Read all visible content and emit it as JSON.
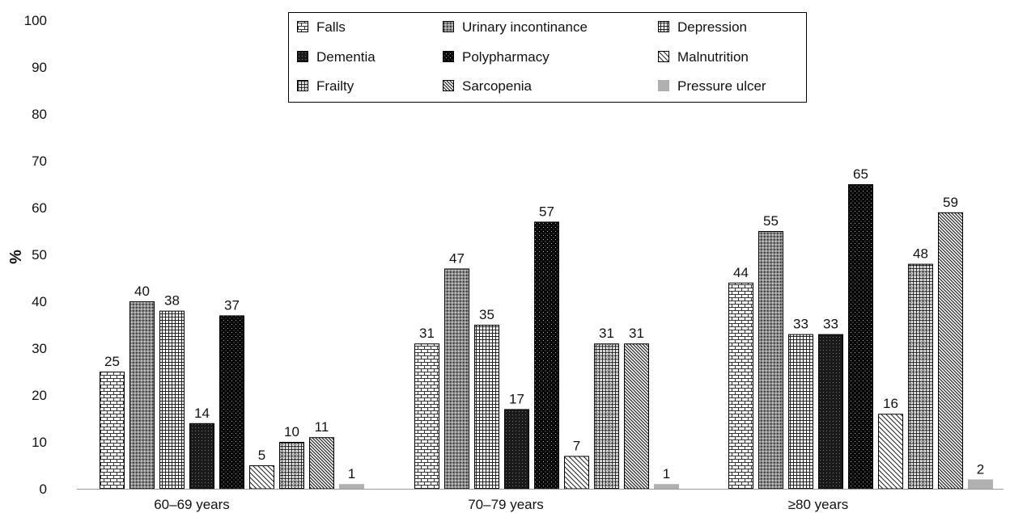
{
  "chart_data": {
    "type": "bar",
    "ylabel": "%",
    "xlabel": "",
    "ylim": [
      0,
      100
    ],
    "yticks": [
      0,
      10,
      20,
      30,
      40,
      50,
      60,
      70,
      80,
      90,
      100
    ],
    "categories": [
      "60–69 years",
      "70–79 years",
      "≥80 years"
    ],
    "series": [
      {
        "name": "Falls",
        "pattern": "brick",
        "values": [
          25,
          31,
          44
        ]
      },
      {
        "name": "Urinary incontinance",
        "pattern": "dots-dense",
        "values": [
          40,
          47,
          55
        ]
      },
      {
        "name": "Depression",
        "pattern": "grid-small",
        "values": [
          38,
          35,
          33
        ]
      },
      {
        "name": "Dementia",
        "pattern": "dark-dots",
        "values": [
          14,
          17,
          33
        ]
      },
      {
        "name": "Polypharmacy",
        "pattern": "black-dots",
        "values": [
          37,
          57,
          65
        ]
      },
      {
        "name": "Malnutrition",
        "pattern": "diag-light",
        "values": [
          5,
          7,
          16
        ]
      },
      {
        "name": "Frailty",
        "pattern": "grid-dots",
        "values": [
          10,
          31,
          48
        ]
      },
      {
        "name": "Sarcopenia",
        "pattern": "diag-dense",
        "values": [
          11,
          31,
          59
        ]
      },
      {
        "name": "Pressure ulcer",
        "pattern": "solid-gray",
        "values": [
          1,
          1,
          2
        ]
      }
    ],
    "legend_position": "top-center",
    "grid": false
  }
}
